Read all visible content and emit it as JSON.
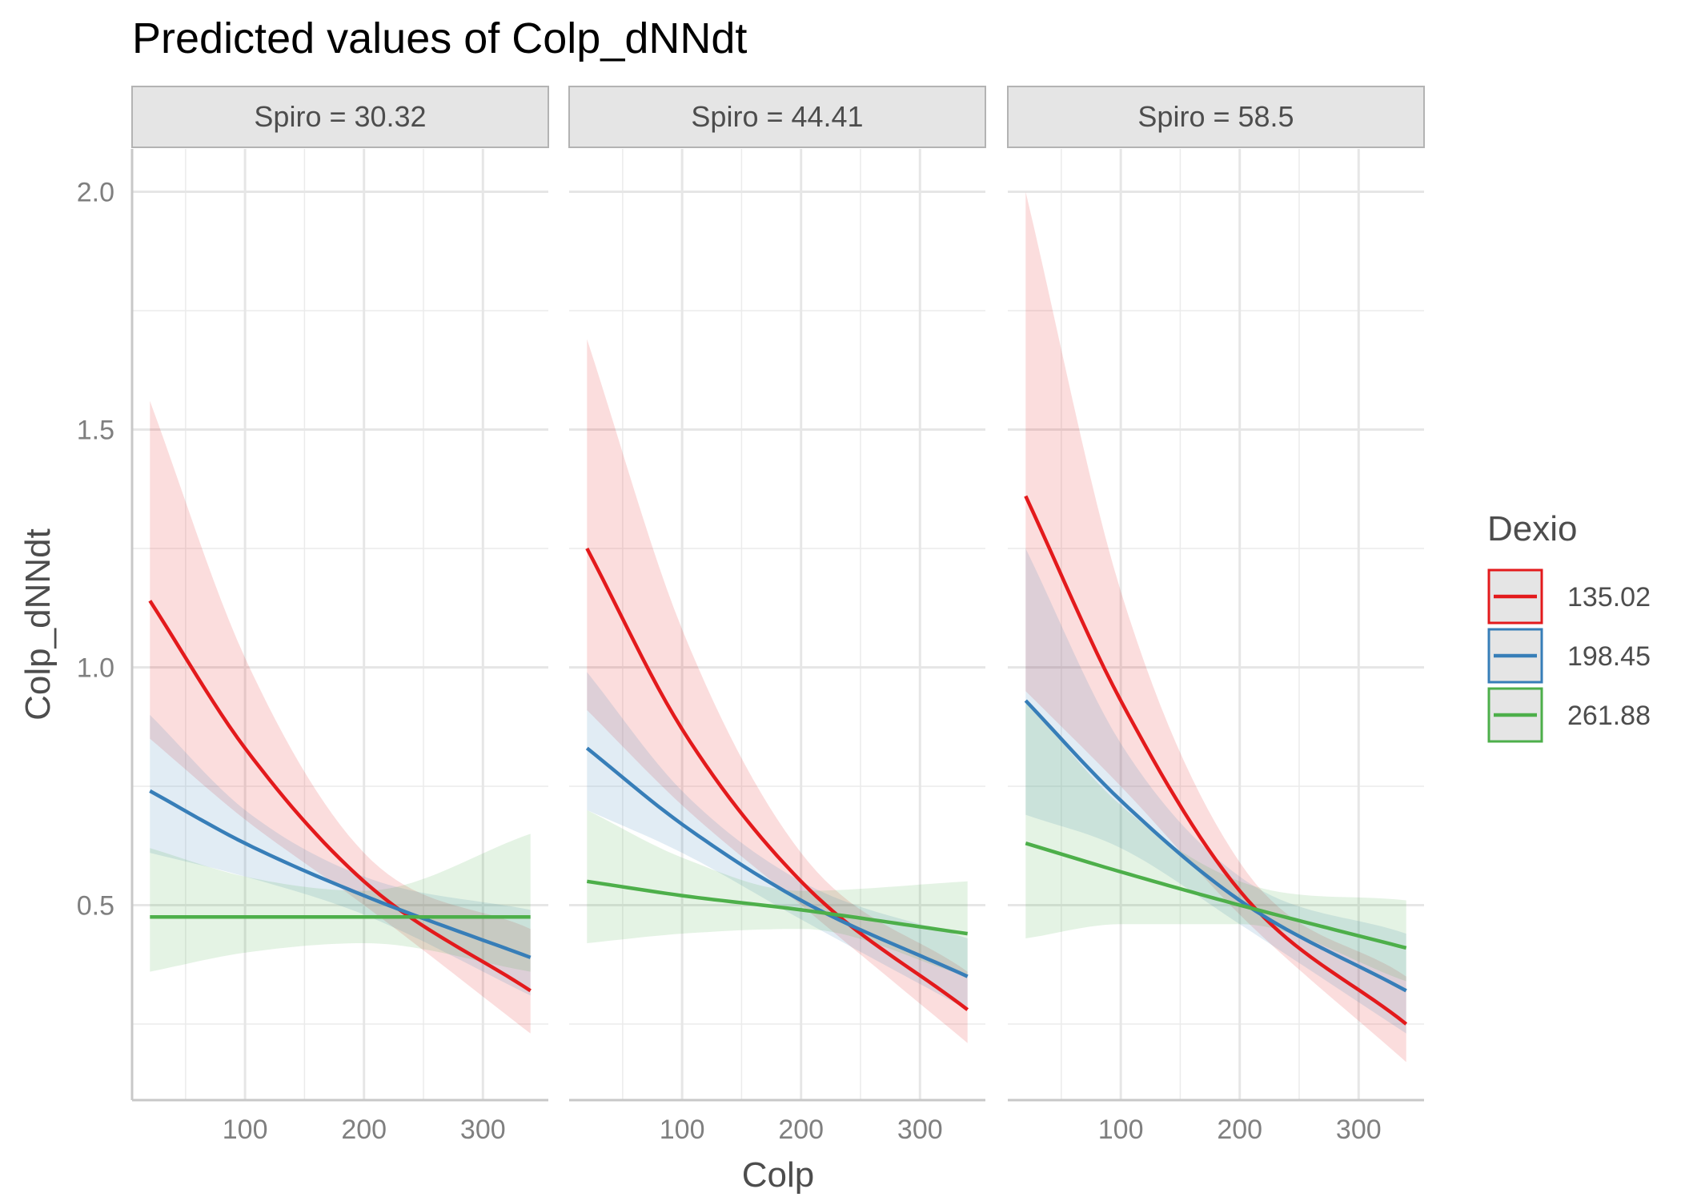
{
  "chart_data": {
    "type": "line",
    "title": "Predicted values of Colp_dNNdt",
    "xlabel": "Colp",
    "ylabel": "Colp_dNNdt",
    "xlim": [
      5,
      355
    ],
    "ylim": [
      0.09,
      2.09
    ],
    "x_ticks": [
      100,
      200,
      300
    ],
    "x_tick_labels": [
      "100",
      "200",
      "300"
    ],
    "y_ticks": [
      0.5,
      1.0,
      1.5,
      2.0
    ],
    "y_tick_labels": [
      "0.5",
      "1.0",
      "1.5",
      "2.0"
    ],
    "grid": true,
    "legend": {
      "title": "Dexio",
      "position": "right",
      "entries": [
        "135.02",
        "198.45",
        "261.88"
      ]
    },
    "series_colors": [
      "#e31a1c",
      "#377eb8",
      "#4daf4a"
    ],
    "x": [
      20,
      100,
      200,
      340
    ],
    "facets": [
      {
        "label": "Spiro = 30.32",
        "series": [
          {
            "name": "135.02",
            "values": [
              1.14,
              0.83,
              0.55,
              0.32
            ],
            "lower": [
              0.85,
              0.68,
              0.5,
              0.23
            ],
            "upper": [
              1.56,
              1.02,
              0.61,
              0.45
            ]
          },
          {
            "name": "198.45",
            "values": [
              0.74,
              0.63,
              0.52,
              0.39
            ],
            "lower": [
              0.61,
              0.56,
              0.48,
              0.31
            ],
            "upper": [
              0.9,
              0.7,
              0.56,
              0.49
            ]
          },
          {
            "name": "261.88",
            "values": [
              0.475,
              0.475,
              0.475,
              0.475
            ],
            "lower": [
              0.36,
              0.4,
              0.42,
              0.36
            ],
            "upper": [
              0.62,
              0.56,
              0.53,
              0.65
            ]
          }
        ]
      },
      {
        "label": "Spiro = 44.41",
        "series": [
          {
            "name": "135.02",
            "values": [
              1.25,
              0.87,
              0.55,
              0.28
            ],
            "lower": [
              0.91,
              0.71,
              0.5,
              0.21
            ],
            "upper": [
              1.69,
              1.08,
              0.61,
              0.36
            ]
          },
          {
            "name": "198.45",
            "values": [
              0.83,
              0.67,
              0.51,
              0.35
            ],
            "lower": [
              0.7,
              0.61,
              0.47,
              0.28
            ],
            "upper": [
              0.99,
              0.74,
              0.55,
              0.43
            ]
          },
          {
            "name": "261.88",
            "values": [
              0.55,
              0.52,
              0.49,
              0.44
            ],
            "lower": [
              0.42,
              0.44,
              0.45,
              0.35
            ],
            "upper": [
              0.7,
              0.6,
              0.53,
              0.55
            ]
          }
        ]
      },
      {
        "label": "Spiro = 58.5",
        "series": [
          {
            "name": "135.02",
            "values": [
              1.36,
              0.93,
              0.53,
              0.25
            ],
            "lower": [
              0.95,
              0.75,
              0.48,
              0.17
            ],
            "upper": [
              2.0,
              1.16,
              0.59,
              0.35
            ]
          },
          {
            "name": "198.45",
            "values": [
              0.93,
              0.72,
              0.51,
              0.32
            ],
            "lower": [
              0.69,
              0.62,
              0.46,
              0.23
            ],
            "upper": [
              1.25,
              0.84,
              0.56,
              0.44
            ]
          },
          {
            "name": "261.88",
            "values": [
              0.63,
              0.57,
              0.5,
              0.41
            ],
            "lower": [
              0.43,
              0.46,
              0.46,
              0.34
            ],
            "upper": [
              0.93,
              0.71,
              0.55,
              0.51
            ]
          }
        ]
      }
    ]
  }
}
